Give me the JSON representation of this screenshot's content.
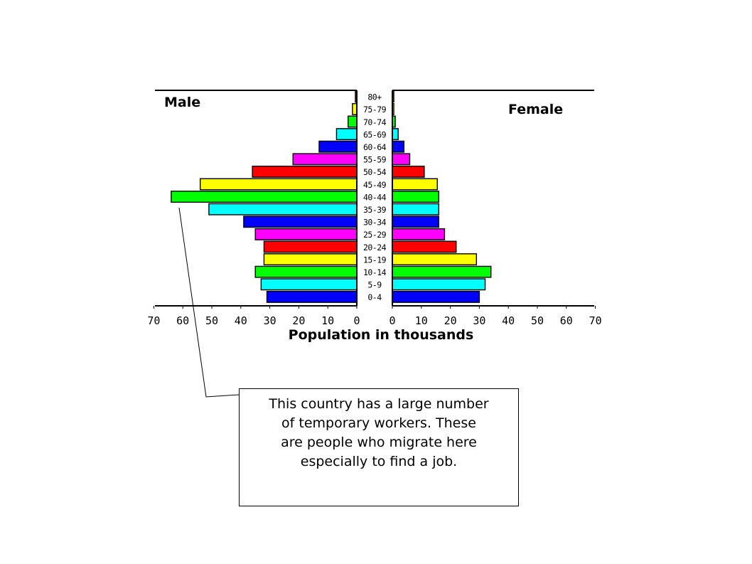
{
  "chart_data": {
    "type": "bar",
    "orientation": "horizontal",
    "categories": [
      "0-4",
      "5-9",
      "10-14",
      "15-19",
      "20-24",
      "25-29",
      "30-34",
      "35-39",
      "40-44",
      "45-49",
      "50-54",
      "55-59",
      "60-64",
      "65-69",
      "70-74",
      "75-79",
      "80+"
    ],
    "category_colors": [
      "#0000ff",
      "#00ffff",
      "#00ff00",
      "#ffff00",
      "#ff0000",
      "#ff00ff",
      "#0000ff",
      "#00ffff",
      "#00ff00",
      "#ffff00",
      "#ff0000",
      "#ff00ff",
      "#0000ff",
      "#00ffff",
      "#00ff00",
      "#ffff00",
      "#ff0000"
    ],
    "series": [
      {
        "name": "Male",
        "values": [
          31,
          33,
          35,
          32,
          32,
          35,
          39,
          51,
          64,
          54,
          36,
          22,
          13,
          7,
          3,
          1.5,
          0.5
        ]
      },
      {
        "name": "Female",
        "values": [
          30,
          32,
          34,
          29,
          22,
          18,
          16,
          16,
          16,
          15.5,
          11,
          6,
          4,
          2,
          1,
          0.5,
          0.5
        ]
      }
    ],
    "xlabel": "Population in thousands",
    "ticks": [
      0,
      10,
      20,
      30,
      40,
      50,
      60,
      70
    ],
    "xlim": [
      0,
      70
    ],
    "grid": false
  },
  "annotation": {
    "lines": [
      "This country has a large number",
      "of temporary workers.  These",
      "are people who migrate here",
      "especially to find a job."
    ]
  }
}
